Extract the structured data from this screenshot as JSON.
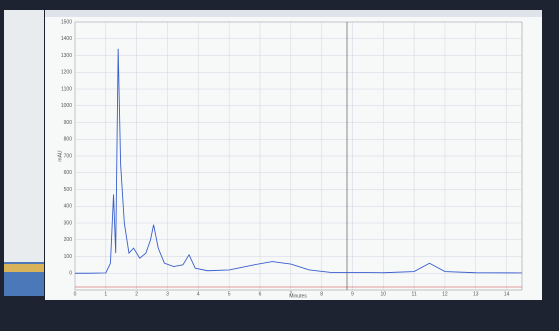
{
  "chart_data": {
    "type": "line",
    "x_label": "Minutes",
    "y_label": "mAU",
    "x": [
      0,
      0.5,
      1.0,
      1.15,
      1.25,
      1.32,
      1.4,
      1.48,
      1.6,
      1.75,
      1.9,
      2.1,
      2.3,
      2.45,
      2.55,
      2.7,
      2.9,
      3.2,
      3.5,
      3.7,
      3.9,
      4.3,
      5,
      5.8,
      6.4,
      7,
      7.6,
      8.3,
      9,
      10,
      11,
      11.5,
      12,
      13,
      14.5
    ],
    "series": [
      {
        "color": "#3a5fcd",
        "values": [
          0,
          0,
          2,
          60,
          470,
          120,
          1340,
          650,
          300,
          120,
          150,
          90,
          120,
          200,
          290,
          150,
          60,
          40,
          50,
          110,
          30,
          15,
          20,
          50,
          70,
          55,
          20,
          5,
          5,
          3,
          10,
          60,
          10,
          3,
          2
        ]
      }
    ],
    "xlim": [
      0,
      14.5
    ],
    "xticks": [
      0,
      1,
      2,
      3,
      4,
      5,
      6,
      7,
      8,
      9,
      10,
      11,
      12,
      13,
      14
    ],
    "ylim": [
      -100,
      1500
    ],
    "yticks": [
      0,
      100,
      200,
      300,
      400,
      500,
      600,
      700,
      800,
      900,
      1000,
      1100,
      1200,
      1300,
      1400,
      1500
    ],
    "grid": true
  }
}
